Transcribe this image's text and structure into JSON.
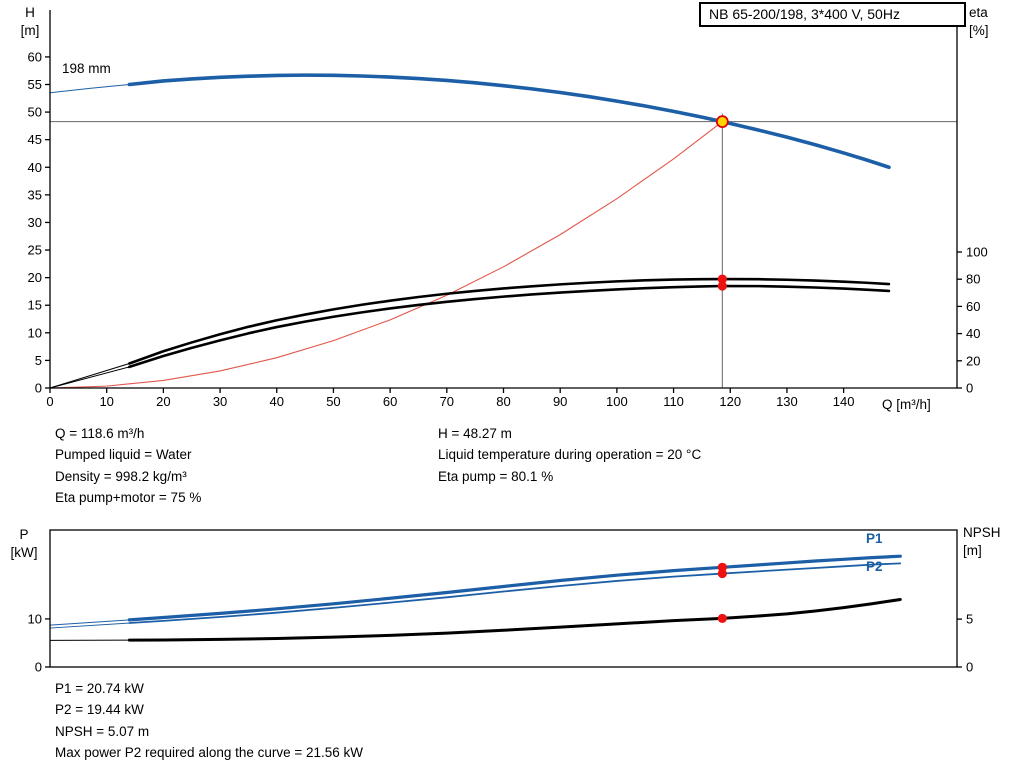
{
  "colors": {
    "curve_blue": "#1d5fa7",
    "curve_black": "#000000",
    "curve_red": "#e2564a",
    "dot_red": "#ee1111",
    "duty_fill": "#ffd400",
    "duty_ring": "#e00000",
    "guide": "#666666",
    "axis": "#000000"
  },
  "info_top": {
    "left": [
      "Q = 118.6 m³/h",
      "Pumped liquid = Water",
      "Density = 998.2 kg/m³",
      "Eta pump+motor = 75 %"
    ],
    "right": [
      "H = 48.27 m",
      "Liquid temperature during operation = 20 °C",
      "Eta pump = 80.1 %"
    ]
  },
  "info_bottom": [
    "P1 = 20.74 kW",
    "P2 = 19.44 kW",
    "NPSH = 5.07 m",
    "Max power P2 required along the curve = 21.56 kW"
  ],
  "chart_data": [
    {
      "id": "hq-eta-chart",
      "type": "line",
      "title": "NB 65-200/198, 3*400 V, 50Hz",
      "xlabel": "Q [m³/h]",
      "ylabel_left": [
        "H",
        "[m]"
      ],
      "ylabel_right": [
        "eta",
        "[%]"
      ],
      "xlim": [
        0,
        160
      ],
      "ylim_left": [
        0,
        68.5
      ],
      "ylim_right": [
        0,
        100
      ],
      "grid": false,
      "impeller_label": "198 mm",
      "x_ticks": [
        0,
        10,
        20,
        30,
        40,
        50,
        60,
        70,
        80,
        90,
        100,
        110,
        120,
        130,
        140
      ],
      "y_ticks": [
        0,
        5,
        10,
        15,
        20,
        25,
        30,
        35,
        40,
        45,
        50,
        55,
        60
      ],
      "eta_ticks": [
        0,
        20,
        40,
        60,
        80,
        100
      ],
      "duty_point": {
        "q": 118.6,
        "h": 48.27,
        "eta_pump": 80.1,
        "eta_pump_motor": 75
      },
      "guides": {
        "vline_q": 118.6,
        "hline_h": 48.27
      },
      "series": [
        {
          "name": "system-curve",
          "axis": "h",
          "color": "#e2564a",
          "width": 1.1,
          "points": [
            [
              0,
              0
            ],
            [
              10,
              0.34
            ],
            [
              20,
              1.37
            ],
            [
              30,
              3.09
            ],
            [
              40,
              5.49
            ],
            [
              50,
              8.58
            ],
            [
              60,
              12.35
            ],
            [
              70,
              16.81
            ],
            [
              80,
              21.96
            ],
            [
              90,
              27.79
            ],
            [
              100,
              34.31
            ],
            [
              110,
              41.51
            ],
            [
              118.6,
              48.27
            ]
          ]
        },
        {
          "name": "eta-pump-ext",
          "axis": "eta",
          "color": "#000000",
          "width": 1,
          "points": [
            [
              0,
              0
            ],
            [
              14,
              18
            ]
          ]
        },
        {
          "name": "eta-pump-motor-ext",
          "axis": "eta",
          "color": "#000000",
          "width": 1,
          "points": [
            [
              0,
              0
            ],
            [
              14,
              15.5
            ]
          ]
        },
        {
          "name": "eta-pump",
          "axis": "eta",
          "color": "#000000",
          "width": 2.6,
          "points": [
            [
              14,
              18
            ],
            [
              20,
              27
            ],
            [
              25,
              33.5
            ],
            [
              30,
              39.5
            ],
            [
              35,
              45
            ],
            [
              40,
              49.8
            ],
            [
              45,
              54
            ],
            [
              50,
              57.8
            ],
            [
              55,
              61.2
            ],
            [
              60,
              64.2
            ],
            [
              65,
              66.9
            ],
            [
              70,
              69.3
            ],
            [
              75,
              71.4
            ],
            [
              80,
              73.2
            ],
            [
              85,
              74.8
            ],
            [
              90,
              76.2
            ],
            [
              95,
              77.4
            ],
            [
              100,
              78.4
            ],
            [
              105,
              79.2
            ],
            [
              110,
              79.7
            ],
            [
              115,
              80.0
            ],
            [
              118.6,
              80.1
            ],
            [
              125,
              80.0
            ],
            [
              130,
              79.6
            ],
            [
              135,
              79.0
            ],
            [
              140,
              78.2
            ],
            [
              144,
              77.4
            ],
            [
              148,
              76.4
            ]
          ]
        },
        {
          "name": "eta-pump-motor",
          "axis": "eta",
          "color": "#000000",
          "width": 2.6,
          "points": [
            [
              14,
              15.5
            ],
            [
              20,
              23.5
            ],
            [
              25,
              29.5
            ],
            [
              30,
              35
            ],
            [
              35,
              40.2
            ],
            [
              40,
              44.8
            ],
            [
              45,
              48.8
            ],
            [
              50,
              52.4
            ],
            [
              55,
              55.6
            ],
            [
              60,
              58.5
            ],
            [
              65,
              61.1
            ],
            [
              70,
              63.4
            ],
            [
              75,
              65.4
            ],
            [
              80,
              67.2
            ],
            [
              85,
              68.8
            ],
            [
              90,
              70.2
            ],
            [
              95,
              71.4
            ],
            [
              100,
              72.5
            ],
            [
              105,
              73.4
            ],
            [
              110,
              74.1
            ],
            [
              115,
              74.7
            ],
            [
              118.6,
              75.0
            ],
            [
              125,
              74.9
            ],
            [
              130,
              74.5
            ],
            [
              135,
              73.9
            ],
            [
              140,
              73.1
            ],
            [
              144,
              72.3
            ],
            [
              148,
              71.4
            ]
          ]
        },
        {
          "name": "head-curve-ext",
          "axis": "h",
          "color": "#1d5fa7",
          "width": 1,
          "points": [
            [
              0,
              53.5
            ],
            [
              7,
              54.3
            ],
            [
              14,
              55.0
            ]
          ]
        },
        {
          "name": "head-curve",
          "axis": "h",
          "color": "#1d5fa7",
          "width": 3.6,
          "points": [
            [
              14,
              55.0
            ],
            [
              20,
              55.65
            ],
            [
              25,
              56.0
            ],
            [
              30,
              56.3
            ],
            [
              35,
              56.5
            ],
            [
              40,
              56.65
            ],
            [
              45,
              56.7
            ],
            [
              50,
              56.66
            ],
            [
              55,
              56.54
            ],
            [
              60,
              56.35
            ],
            [
              65,
              56.08
            ],
            [
              70,
              55.73
            ],
            [
              75,
              55.3
            ],
            [
              80,
              54.79
            ],
            [
              85,
              54.21
            ],
            [
              90,
              53.55
            ],
            [
              95,
              52.81
            ],
            [
              100,
              51.99
            ],
            [
              105,
              51.1
            ],
            [
              110,
              50.13
            ],
            [
              115,
              49.08
            ],
            [
              118.6,
              48.27
            ],
            [
              125,
              46.74
            ],
            [
              130,
              45.46
            ],
            [
              135,
              44.08
            ],
            [
              140,
              42.6
            ],
            [
              144,
              41.34
            ],
            [
              148,
              40.0
            ]
          ]
        }
      ],
      "markers": [
        {
          "type": "dot",
          "axis": "eta",
          "x": 118.6,
          "y": 80.1,
          "r": 4.6,
          "fill": "#ee1111"
        },
        {
          "type": "dot",
          "axis": "eta",
          "x": 118.6,
          "y": 75,
          "r": 4.6,
          "fill": "#ee1111"
        },
        {
          "type": "duty",
          "axis": "h",
          "x": 118.6,
          "y": 48.27,
          "r": 5.5,
          "fill": "#ffd400",
          "stroke": "#e00000"
        }
      ]
    },
    {
      "id": "power-npsh-chart",
      "type": "line",
      "xlabel": "",
      "ylabel_left": [
        "P",
        "[kW]"
      ],
      "ylabel_right": [
        "NPSH",
        "[m]"
      ],
      "xlim": [
        0,
        160
      ],
      "ylim_left": [
        0,
        28.5
      ],
      "ylim_right": [
        0,
        14.3
      ],
      "grid": false,
      "legend": [
        "P1",
        "P2"
      ],
      "p_ticks": [
        0,
        10
      ],
      "npsh_ticks": [
        0,
        5
      ],
      "duty_point": {
        "q": 118.6,
        "p1": 20.74,
        "p2": 19.44,
        "npsh": 5.07
      },
      "series": [
        {
          "name": "npsh-ext",
          "axis": "npsh",
          "color": "#000000",
          "width": 1,
          "points": [
            [
              0,
              2.78
            ],
            [
              14,
              2.8
            ]
          ]
        },
        {
          "name": "npsh-curve",
          "axis": "npsh",
          "color": "#000000",
          "width": 3,
          "points": [
            [
              14,
              2.8
            ],
            [
              20,
              2.82
            ],
            [
              30,
              2.88
            ],
            [
              40,
              2.98
            ],
            [
              50,
              3.12
            ],
            [
              60,
              3.3
            ],
            [
              70,
              3.54
            ],
            [
              80,
              3.83
            ],
            [
              90,
              4.16
            ],
            [
              100,
              4.5
            ],
            [
              110,
              4.84
            ],
            [
              118.6,
              5.07
            ],
            [
              125,
              5.32
            ],
            [
              130,
              5.55
            ],
            [
              135,
              5.85
            ],
            [
              140,
              6.2
            ],
            [
              145,
              6.6
            ],
            [
              150,
              7.05
            ]
          ]
        },
        {
          "name": "p2-ext",
          "axis": "p",
          "color": "#1d5fa7",
          "width": 1,
          "points": [
            [
              0,
              8.1
            ],
            [
              14,
              9.15
            ]
          ]
        },
        {
          "name": "p2-curve",
          "axis": "p",
          "color": "#1d5fa7",
          "width": 1.8,
          "points": [
            [
              14,
              9.15
            ],
            [
              20,
              9.6
            ],
            [
              30,
              10.4
            ],
            [
              40,
              11.3
            ],
            [
              50,
              12.3
            ],
            [
              60,
              13.4
            ],
            [
              70,
              14.5
            ],
            [
              80,
              15.7
            ],
            [
              90,
              16.85
            ],
            [
              100,
              17.9
            ],
            [
              110,
              18.8
            ],
            [
              118.6,
              19.44
            ],
            [
              125,
              19.9
            ],
            [
              130,
              20.25
            ],
            [
              135,
              20.6
            ],
            [
              140,
              20.95
            ],
            [
              145,
              21.3
            ],
            [
              150,
              21.56
            ]
          ]
        },
        {
          "name": "p1-ext",
          "axis": "p",
          "color": "#1d5fa7",
          "width": 1,
          "points": [
            [
              0,
              8.7
            ],
            [
              14,
              9.8
            ]
          ]
        },
        {
          "name": "p1-curve",
          "axis": "p",
          "color": "#1d5fa7",
          "width": 3.2,
          "points": [
            [
              14,
              9.8
            ],
            [
              20,
              10.3
            ],
            [
              30,
              11.15
            ],
            [
              40,
              12.1
            ],
            [
              50,
              13.15
            ],
            [
              60,
              14.3
            ],
            [
              70,
              15.5
            ],
            [
              80,
              16.75
            ],
            [
              90,
              18.0
            ],
            [
              100,
              19.1
            ],
            [
              110,
              20.05
            ],
            [
              118.6,
              20.74
            ],
            [
              125,
              21.25
            ],
            [
              130,
              21.65
            ],
            [
              135,
              22.05
            ],
            [
              140,
              22.4
            ],
            [
              145,
              22.75
            ],
            [
              150,
              23.05
            ]
          ]
        }
      ],
      "markers": [
        {
          "type": "dot",
          "axis": "p",
          "x": 118.6,
          "y": 20.74,
          "r": 4.6,
          "fill": "#ee1111"
        },
        {
          "type": "dot",
          "axis": "p",
          "x": 118.6,
          "y": 19.44,
          "r": 4.6,
          "fill": "#ee1111"
        },
        {
          "type": "dot",
          "axis": "npsh",
          "x": 118.6,
          "y": 5.07,
          "r": 4.6,
          "fill": "#ee1111"
        }
      ]
    }
  ]
}
